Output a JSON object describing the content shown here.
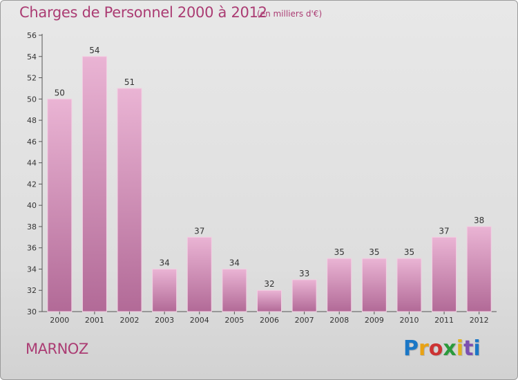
{
  "header": {
    "title": "Charges de Personnel 2000 à 2012",
    "subtitle": "(en milliers d'€)"
  },
  "footer": {
    "commune": "MARNOZ",
    "logo_text": "Proxiti",
    "logo_colors": [
      "#1b77c6",
      "#e8a214",
      "#cc3333",
      "#2a9a3b",
      "#e0b11e",
      "#7b4fb0",
      "#1b77c6"
    ]
  },
  "colors": {
    "bar_light": "#eab4d4",
    "bar_dark": "#b26a97",
    "accent": "#ab3c73"
  },
  "chart_data": {
    "type": "bar",
    "title": "Charges de Personnel 2000 à 2012",
    "subtitle": "(en milliers d'€)",
    "categories": [
      "2000",
      "2001",
      "2002",
      "2003",
      "2004",
      "2005",
      "2006",
      "2007",
      "2008",
      "2009",
      "2010",
      "2011",
      "2012"
    ],
    "values": [
      50,
      54,
      51,
      34,
      37,
      34,
      32,
      33,
      35,
      35,
      35,
      37,
      38
    ],
    "ylim": [
      30,
      56
    ],
    "yticks": [
      30,
      32,
      34,
      36,
      38,
      40,
      42,
      44,
      46,
      48,
      50,
      52,
      54,
      56
    ],
    "grid": false
  }
}
